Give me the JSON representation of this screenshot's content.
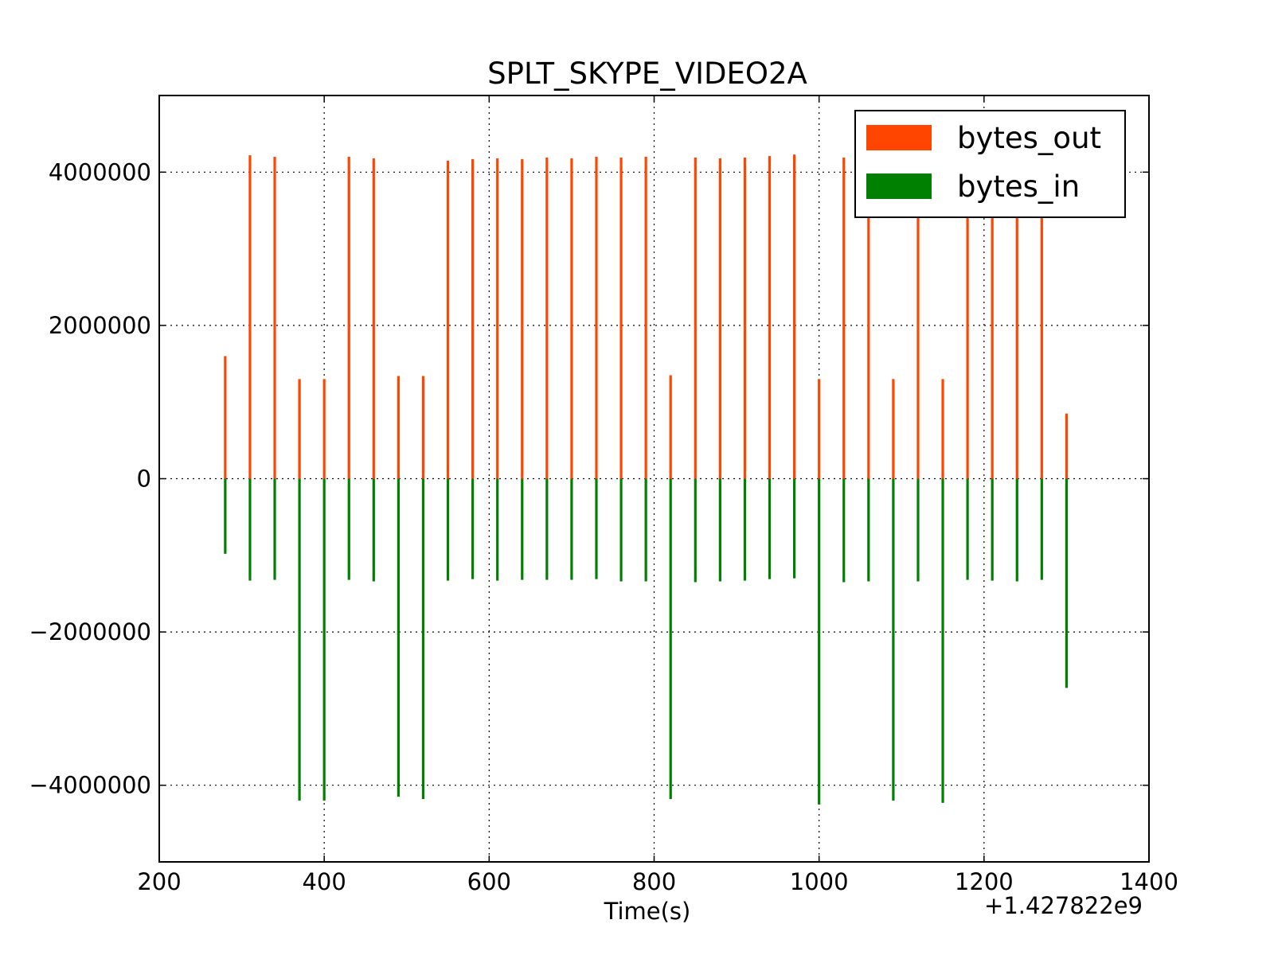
{
  "chart_data": {
    "type": "bar",
    "title": "SPLT_SKYPE_VIDEO2A",
    "xlabel": "Time(s)",
    "ylabel": "",
    "x_offset_label": "+1.427822e9",
    "xlim": [
      200,
      1400
    ],
    "ylim": [
      -5000000,
      5000000
    ],
    "xticks": [
      200,
      400,
      600,
      800,
      1000,
      1200,
      1400
    ],
    "xtick_labels": [
      "200",
      "400",
      "600",
      "800",
      "1000",
      "1200",
      "1400"
    ],
    "yticks": [
      -4000000,
      -2000000,
      0,
      2000000,
      4000000
    ],
    "ytick_labels": [
      "−4000000",
      "−2000000",
      "0",
      "2000000",
      "4000000"
    ],
    "grid": true,
    "legend_position": "top-right",
    "x": [
      280,
      310,
      340,
      370,
      400,
      430,
      460,
      490,
      520,
      550,
      580,
      610,
      640,
      670,
      700,
      730,
      760,
      790,
      820,
      850,
      880,
      910,
      940,
      970,
      1000,
      1030,
      1060,
      1090,
      1120,
      1150,
      1180,
      1210,
      1240,
      1270,
      1300
    ],
    "series": [
      {
        "name": "bytes_out",
        "color": "#ff4500",
        "values": [
          1600000,
          4220000,
          4200000,
          1300000,
          1300000,
          4200000,
          4180000,
          1340000,
          1340000,
          4150000,
          4170000,
          4180000,
          4170000,
          4190000,
          4180000,
          4200000,
          4190000,
          4200000,
          1350000,
          4190000,
          4180000,
          4190000,
          4210000,
          4230000,
          1300000,
          4190000,
          3400000,
          1300000,
          3400000,
          1300000,
          3400000,
          3400000,
          3400000,
          3400000,
          850000
        ]
      },
      {
        "name": "bytes_in",
        "color": "#008000",
        "values": [
          -980000,
          -1330000,
          -1320000,
          -4200000,
          -4200000,
          -1320000,
          -1340000,
          -4150000,
          -4180000,
          -1330000,
          -1310000,
          -1330000,
          -1320000,
          -1320000,
          -1320000,
          -1310000,
          -1340000,
          -1340000,
          -4180000,
          -1350000,
          -1340000,
          -1330000,
          -1310000,
          -1300000,
          -4250000,
          -1350000,
          -1340000,
          -4200000,
          -1340000,
          -4230000,
          -1320000,
          -1330000,
          -1340000,
          -1320000,
          -2730000
        ]
      }
    ]
  }
}
